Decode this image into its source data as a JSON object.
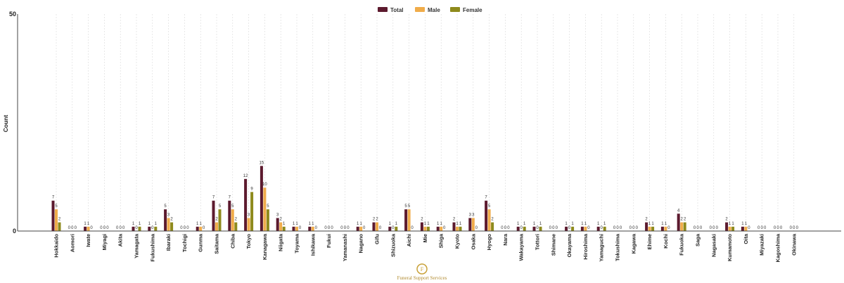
{
  "brand": {
    "name": "Funeral Support Services",
    "color": "#c9a23a"
  },
  "chart_data": {
    "type": "bar",
    "title": "",
    "xlabel": "",
    "ylabel": "Count",
    "ylim": [
      0,
      50
    ],
    "yticks": [
      0,
      50
    ],
    "grid": "vertical",
    "legend_position": "top-center",
    "categories": [
      "Hokkaido",
      "Aomori",
      "Iwate",
      "Miyagi",
      "Akita",
      "Yamagata",
      "Fukushima",
      "Ibaraki",
      "Tochigi",
      "Gunma",
      "Saitama",
      "Chiba",
      "Tokyo",
      "Kanagawa",
      "Niigata",
      "Toyama",
      "Ishikawa",
      "Fukui",
      "Yamanashi",
      "Nagano",
      "Gifu",
      "Shizuoka",
      "Aichi",
      "Mie",
      "Shiga",
      "Kyoto",
      "Osaka",
      "Hyogo",
      "Nara",
      "Wakayama",
      "Tottori",
      "Shimane",
      "Okayama",
      "Hiroshima",
      "Yamaguchi",
      "Tokushima",
      "Kagawa",
      "Ehime",
      "Kochi",
      "Fukuoka",
      "Saga",
      "Nagasaki",
      "Kumamoto",
      "Oita",
      "Miyazaki",
      "Kagoshima",
      "Okinawa"
    ],
    "series": [
      {
        "name": "Total",
        "color": "#5c1a2e",
        "values": [
          7,
          0,
          1,
          0,
          0,
          1,
          1,
          5,
          0,
          1,
          7,
          7,
          12,
          15,
          3,
          1,
          1,
          0,
          0,
          1,
          2,
          1,
          5,
          2,
          1,
          2,
          3,
          7,
          0,
          1,
          1,
          0,
          1,
          1,
          1,
          0,
          0,
          2,
          1,
          4,
          0,
          0,
          2,
          1,
          0,
          0,
          0
        ]
      },
      {
        "name": "Male",
        "color": "#f0ac4a",
        "values": [
          5,
          0,
          1,
          0,
          0,
          0,
          0,
          3,
          0,
          1,
          2,
          5,
          3,
          10,
          2,
          1,
          1,
          0,
          0,
          1,
          2,
          0,
          5,
          1,
          1,
          1,
          3,
          5,
          0,
          0,
          0,
          0,
          0,
          1,
          0,
          0,
          0,
          1,
          1,
          2,
          0,
          0,
          1,
          1,
          0,
          0,
          0
        ]
      },
      {
        "name": "Female",
        "color": "#8e8a1c",
        "values": [
          2,
          0,
          0,
          0,
          0,
          1,
          1,
          2,
          0,
          0,
          5,
          2,
          9,
          5,
          1,
          0,
          0,
          0,
          0,
          0,
          0,
          1,
          0,
          1,
          0,
          1,
          0,
          2,
          0,
          1,
          1,
          0,
          1,
          0,
          1,
          0,
          0,
          1,
          0,
          2,
          0,
          0,
          1,
          0,
          0,
          0,
          0
        ]
      }
    ]
  }
}
